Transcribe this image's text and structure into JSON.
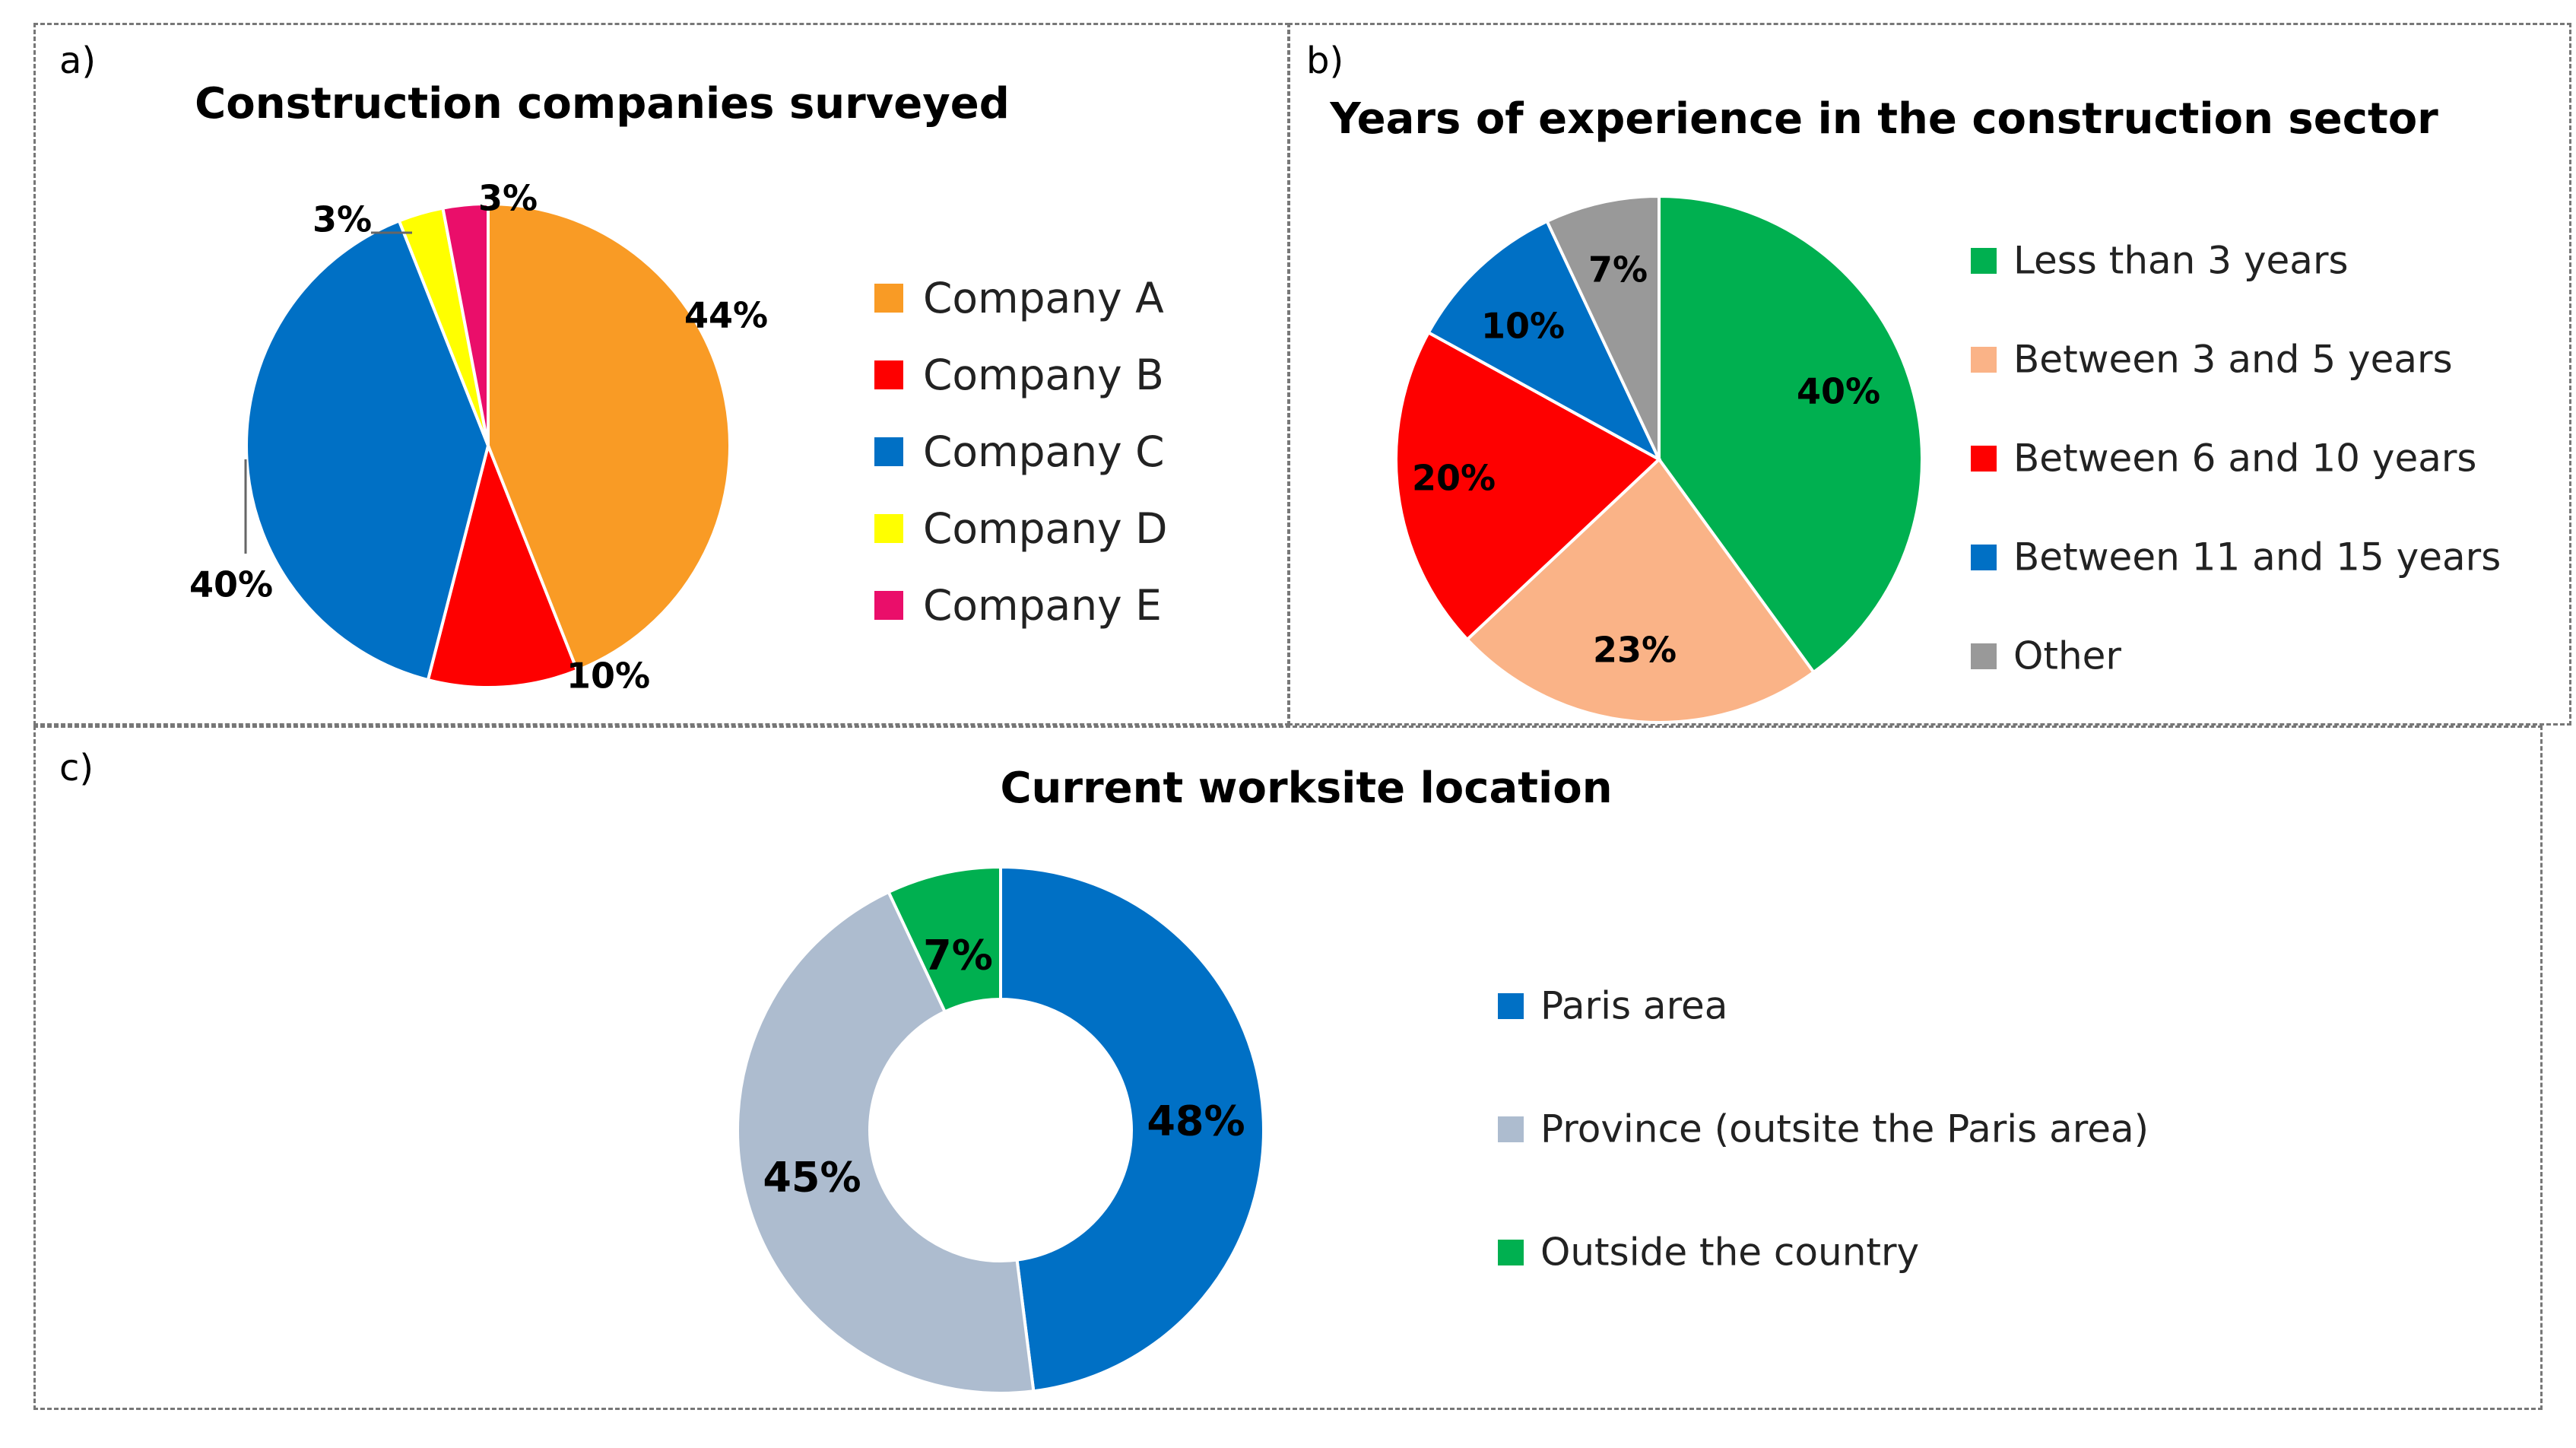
{
  "panels": {
    "a": "a)",
    "b": "b)",
    "c": "c)"
  },
  "chart_data": [
    {
      "type": "pie",
      "title": "Construction companies surveyed",
      "categories": [
        "Company A",
        "Company B",
        "Company C",
        "Company D",
        "Company E"
      ],
      "values": [
        44,
        10,
        40,
        3,
        3
      ],
      "labels": [
        "44%",
        "10%",
        "40%",
        "3%",
        "3%"
      ],
      "colors": [
        "#f99b25",
        "#fe0000",
        "#0070c5",
        "#ffff00",
        "#ea0e6a"
      ],
      "legend_position": "right"
    },
    {
      "type": "pie",
      "title": "Years of experience in the construction sector",
      "categories": [
        "Less than 3 years",
        "Between 3 and 5 years",
        "Between 6 and 10 years",
        "Between 11 and 15 years",
        "Other"
      ],
      "values": [
        40,
        23,
        20,
        10,
        7
      ],
      "labels": [
        "40%",
        "23%",
        "20%",
        "10%",
        "7%"
      ],
      "colors": [
        "#00b050",
        "#fab387",
        "#fe0000",
        "#0070c5",
        "#999999"
      ],
      "legend_position": "right"
    },
    {
      "type": "donut",
      "title": "Current worksite location",
      "categories": [
        "Paris area",
        "Province (outsite the Paris area)",
        "Outside the country"
      ],
      "values": [
        48,
        45,
        7
      ],
      "labels": [
        "48%",
        "45%",
        "7%"
      ],
      "colors": [
        "#0070c5",
        "#adbccf",
        "#00b050"
      ],
      "legend_position": "right"
    }
  ]
}
